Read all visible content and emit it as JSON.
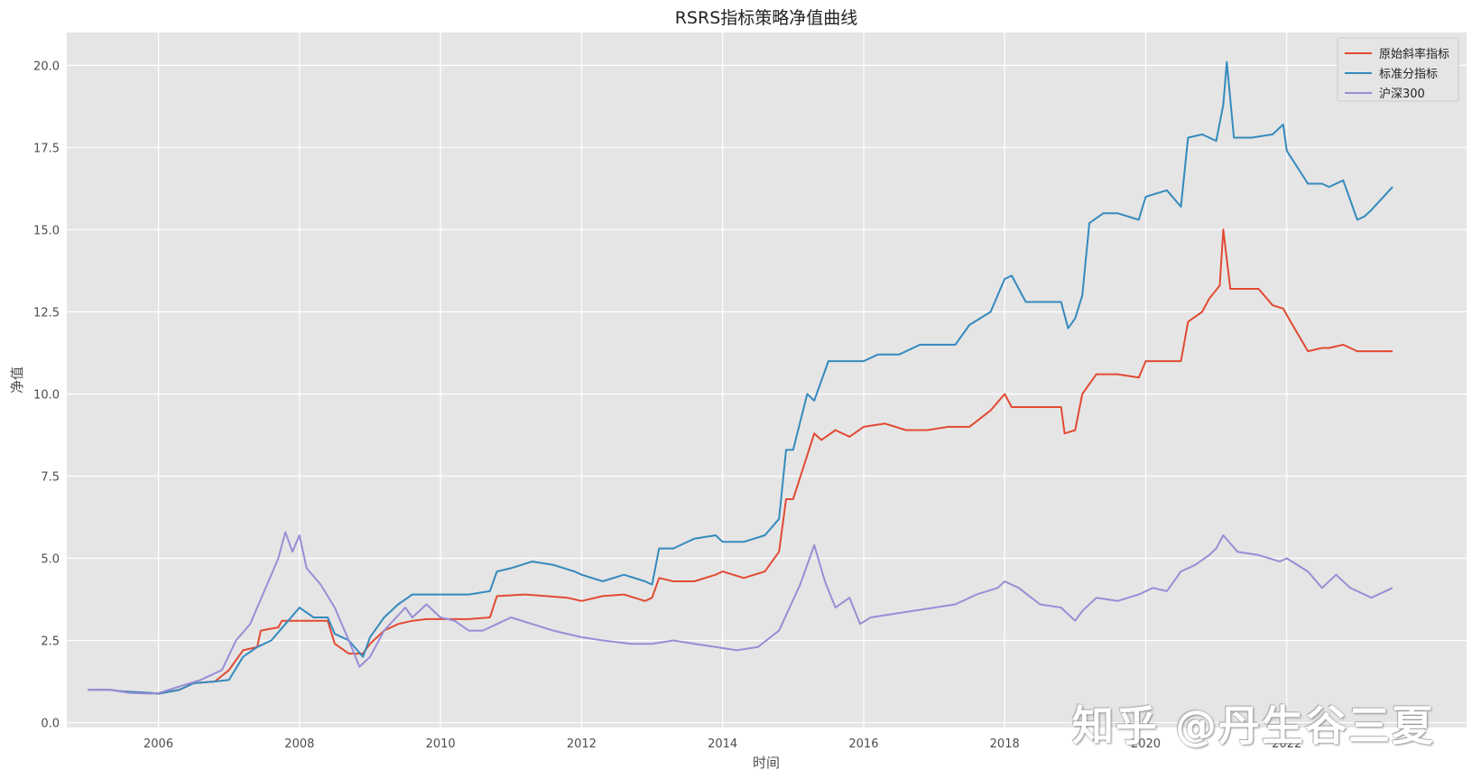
{
  "chart_data": {
    "type": "line",
    "title": "RSRS指标策略净值曲线",
    "xlabel": "时间",
    "ylabel": "净值",
    "xlim": [
      2004.7,
      2024.55
    ],
    "ylim": [
      -0.15,
      21.0
    ],
    "xticks": [
      2006,
      2008,
      2010,
      2012,
      2014,
      2016,
      2018,
      2020,
      2022
    ],
    "yticks": [
      0.0,
      2.5,
      5.0,
      7.5,
      10.0,
      12.5,
      15.0,
      17.5,
      20.0
    ],
    "ytick_labels": [
      "0.0",
      "2.5",
      "5.0",
      "7.5",
      "10.0",
      "12.5",
      "15.0",
      "17.5",
      "20.0"
    ],
    "grid": true,
    "legend_position": "top-right",
    "series": [
      {
        "name": "原始斜率指标",
        "color": "#E24A33",
        "x": [
          2005.0,
          2005.3,
          2005.5,
          2005.9,
          2006.0,
          2006.3,
          2006.5,
          2006.8,
          2007.0,
          2007.2,
          2007.4,
          2007.45,
          2007.7,
          2007.75,
          2008.0,
          2008.2,
          2008.4,
          2008.5,
          2008.7,
          2008.9,
          2009.0,
          2009.2,
          2009.4,
          2009.6,
          2009.8,
          2010.0,
          2010.4,
          2010.7,
          2010.8,
          2011.2,
          2011.5,
          2011.8,
          2012.0,
          2012.3,
          2012.6,
          2012.9,
          2013.0,
          2013.1,
          2013.3,
          2013.6,
          2013.9,
          2014.0,
          2014.3,
          2014.6,
          2014.8,
          2014.9,
          2015.0,
          2015.3,
          2015.4,
          2015.6,
          2015.8,
          2016.0,
          2016.3,
          2016.6,
          2016.9,
          2017.2,
          2017.5,
          2017.8,
          2018.0,
          2018.1,
          2018.3,
          2018.6,
          2018.8,
          2018.85,
          2019.0,
          2019.1,
          2019.3,
          2019.6,
          2019.9,
          2020.0,
          2020.3,
          2020.5,
          2020.6,
          2020.8,
          2020.9,
          2021.05,
          2021.1,
          2021.2,
          2021.4,
          2021.6,
          2021.8,
          2021.95,
          2022.0,
          2022.3,
          2022.5,
          2022.6,
          2022.8,
          2023.0,
          2023.1,
          2023.3,
          2023.5
        ],
        "y": [
          1.0,
          1.0,
          0.95,
          0.9,
          0.88,
          1.0,
          1.2,
          1.25,
          1.6,
          2.2,
          2.3,
          2.8,
          2.9,
          3.1,
          3.1,
          3.1,
          3.1,
          2.4,
          2.1,
          2.1,
          2.4,
          2.8,
          3.0,
          3.1,
          3.15,
          3.15,
          3.15,
          3.2,
          3.85,
          3.9,
          3.85,
          3.8,
          3.7,
          3.85,
          3.9,
          3.7,
          3.8,
          4.4,
          4.3,
          4.3,
          4.5,
          4.6,
          4.4,
          4.6,
          5.2,
          6.8,
          6.8,
          8.8,
          8.6,
          8.9,
          8.7,
          9.0,
          9.1,
          8.9,
          8.9,
          9.0,
          9.0,
          9.5,
          10.0,
          9.6,
          9.6,
          9.6,
          9.6,
          8.8,
          8.9,
          10.0,
          10.6,
          10.6,
          10.5,
          11.0,
          11.0,
          11.0,
          12.2,
          12.5,
          12.9,
          13.3,
          15.0,
          13.2,
          13.2,
          13.2,
          12.7,
          12.6,
          12.4,
          11.3,
          11.4,
          11.4,
          11.5,
          11.3,
          11.3,
          11.3,
          11.3
        ]
      },
      {
        "name": "标准分指标",
        "color": "#348ABD",
        "x": [
          2005.0,
          2005.3,
          2005.5,
          2005.9,
          2006.0,
          2006.3,
          2006.5,
          2006.8,
          2007.0,
          2007.2,
          2007.4,
          2007.6,
          2007.8,
          2008.0,
          2008.2,
          2008.4,
          2008.5,
          2008.7,
          2008.9,
          2009.0,
          2009.2,
          2009.4,
          2009.6,
          2009.8,
          2010.0,
          2010.4,
          2010.7,
          2010.8,
          2011.0,
          2011.3,
          2011.6,
          2011.9,
          2012.0,
          2012.3,
          2012.6,
          2012.9,
          2013.0,
          2013.1,
          2013.3,
          2013.6,
          2013.9,
          2014.0,
          2014.3,
          2014.6,
          2014.8,
          2014.9,
          2015.0,
          2015.2,
          2015.3,
          2015.5,
          2015.8,
          2016.0,
          2016.2,
          2016.5,
          2016.8,
          2017.0,
          2017.3,
          2017.5,
          2017.8,
          2018.0,
          2018.1,
          2018.3,
          2018.6,
          2018.8,
          2018.9,
          2019.0,
          2019.1,
          2019.2,
          2019.4,
          2019.6,
          2019.9,
          2020.0,
          2020.3,
          2020.5,
          2020.6,
          2020.8,
          2021.0,
          2021.1,
          2021.15,
          2021.25,
          2021.5,
          2021.8,
          2021.95,
          2022.0,
          2022.3,
          2022.5,
          2022.6,
          2022.8,
          2023.0,
          2023.1,
          2023.2,
          2023.5
        ],
        "y": [
          1.0,
          1.0,
          0.95,
          0.9,
          0.88,
          1.0,
          1.2,
          1.25,
          1.3,
          2.0,
          2.3,
          2.5,
          3.0,
          3.5,
          3.2,
          3.2,
          2.7,
          2.5,
          2.0,
          2.6,
          3.2,
          3.6,
          3.9,
          3.9,
          3.9,
          3.9,
          4.0,
          4.6,
          4.7,
          4.9,
          4.8,
          4.6,
          4.5,
          4.3,
          4.5,
          4.3,
          4.2,
          5.3,
          5.3,
          5.6,
          5.7,
          5.5,
          5.5,
          5.7,
          6.2,
          8.3,
          8.3,
          10.0,
          9.8,
          11.0,
          11.0,
          11.0,
          11.2,
          11.2,
          11.5,
          11.5,
          11.5,
          12.1,
          12.5,
          13.5,
          13.6,
          12.8,
          12.8,
          12.8,
          12.0,
          12.3,
          13.0,
          15.2,
          15.5,
          15.5,
          15.3,
          16.0,
          16.2,
          15.7,
          17.8,
          17.9,
          17.7,
          18.8,
          20.1,
          17.8,
          17.8,
          17.9,
          18.2,
          17.4,
          16.4,
          16.4,
          16.3,
          16.5,
          15.3,
          15.4,
          15.6,
          16.3
        ]
      },
      {
        "name": "沪深300",
        "color": "#988ED5",
        "x": [
          2005.0,
          2005.3,
          2005.6,
          2005.9,
          2006.0,
          2006.3,
          2006.6,
          2006.9,
          2007.1,
          2007.3,
          2007.5,
          2007.7,
          2007.8,
          2007.9,
          2008.0,
          2008.1,
          2008.3,
          2008.5,
          2008.7,
          2008.85,
          2009.0,
          2009.2,
          2009.5,
          2009.6,
          2009.8,
          2010.0,
          2010.2,
          2010.4,
          2010.6,
          2010.8,
          2011.0,
          2011.3,
          2011.6,
          2012.0,
          2012.3,
          2012.7,
          2013.0,
          2013.3,
          2013.6,
          2013.9,
          2014.2,
          2014.5,
          2014.8,
          2014.95,
          2015.1,
          2015.3,
          2015.45,
          2015.6,
          2015.8,
          2015.95,
          2016.1,
          2016.4,
          2016.7,
          2017.0,
          2017.3,
          2017.6,
          2017.9,
          2018.0,
          2018.2,
          2018.5,
          2018.8,
          2019.0,
          2019.1,
          2019.3,
          2019.6,
          2019.9,
          2020.1,
          2020.3,
          2020.5,
          2020.7,
          2020.9,
          2021.0,
          2021.1,
          2021.3,
          2021.6,
          2021.9,
          2022.0,
          2022.3,
          2022.5,
          2022.7,
          2022.9,
          2023.0,
          2023.2,
          2023.5
        ],
        "y": [
          1.0,
          1.0,
          0.9,
          0.88,
          0.9,
          1.1,
          1.3,
          1.6,
          2.5,
          3.0,
          4.0,
          5.0,
          5.8,
          5.2,
          5.7,
          4.7,
          4.2,
          3.5,
          2.5,
          1.7,
          2.0,
          2.8,
          3.5,
          3.2,
          3.6,
          3.2,
          3.1,
          2.8,
          2.8,
          3.0,
          3.2,
          3.0,
          2.8,
          2.6,
          2.5,
          2.4,
          2.4,
          2.5,
          2.4,
          2.3,
          2.2,
          2.3,
          2.8,
          3.5,
          4.2,
          5.4,
          4.3,
          3.5,
          3.8,
          3.0,
          3.2,
          3.3,
          3.4,
          3.5,
          3.6,
          3.9,
          4.1,
          4.3,
          4.1,
          3.6,
          3.5,
          3.1,
          3.4,
          3.8,
          3.7,
          3.9,
          4.1,
          4.0,
          4.6,
          4.8,
          5.1,
          5.3,
          5.7,
          5.2,
          5.1,
          4.9,
          5.0,
          4.6,
          4.1,
          4.5,
          4.1,
          4.0,
          3.8,
          4.1
        ]
      }
    ]
  },
  "watermark": "知乎 @丹生谷三夏"
}
